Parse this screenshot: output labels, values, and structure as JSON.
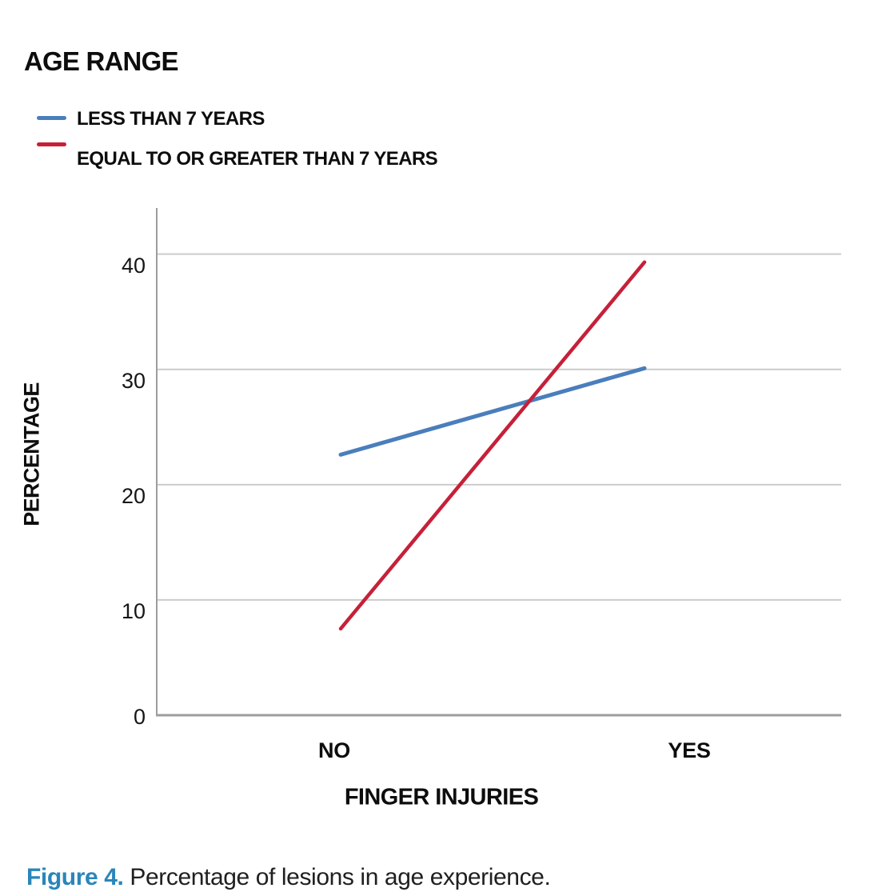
{
  "chart_data": {
    "type": "line",
    "title": "AGE RANGE",
    "categories": [
      "NO",
      "YES"
    ],
    "series": [
      {
        "name": "LESS THAN 7 YEARS",
        "color": "#4a7ebc",
        "values": [
          22.6,
          30.1
        ]
      },
      {
        "name": "EQUAL TO OR GREATER THAN 7 YEARS",
        "color": "#c62039",
        "values": [
          7.5,
          39.3
        ]
      }
    ],
    "xlabel": "FINGER INJURIES",
    "ylabel": "PERCENTAGE",
    "yticks": [
      0,
      10,
      20,
      30,
      40
    ],
    "ylim": [
      0,
      44
    ],
    "grid": true,
    "legend_position": "top-left",
    "gridline_color": "#cbcbcb",
    "axis_color": "#9d9d9d",
    "tick_label_color": "#161616"
  },
  "caption": {
    "label": "Figure 4.",
    "text": "Percentage of lesions in age experience.",
    "label_color": "#2a86b9"
  }
}
